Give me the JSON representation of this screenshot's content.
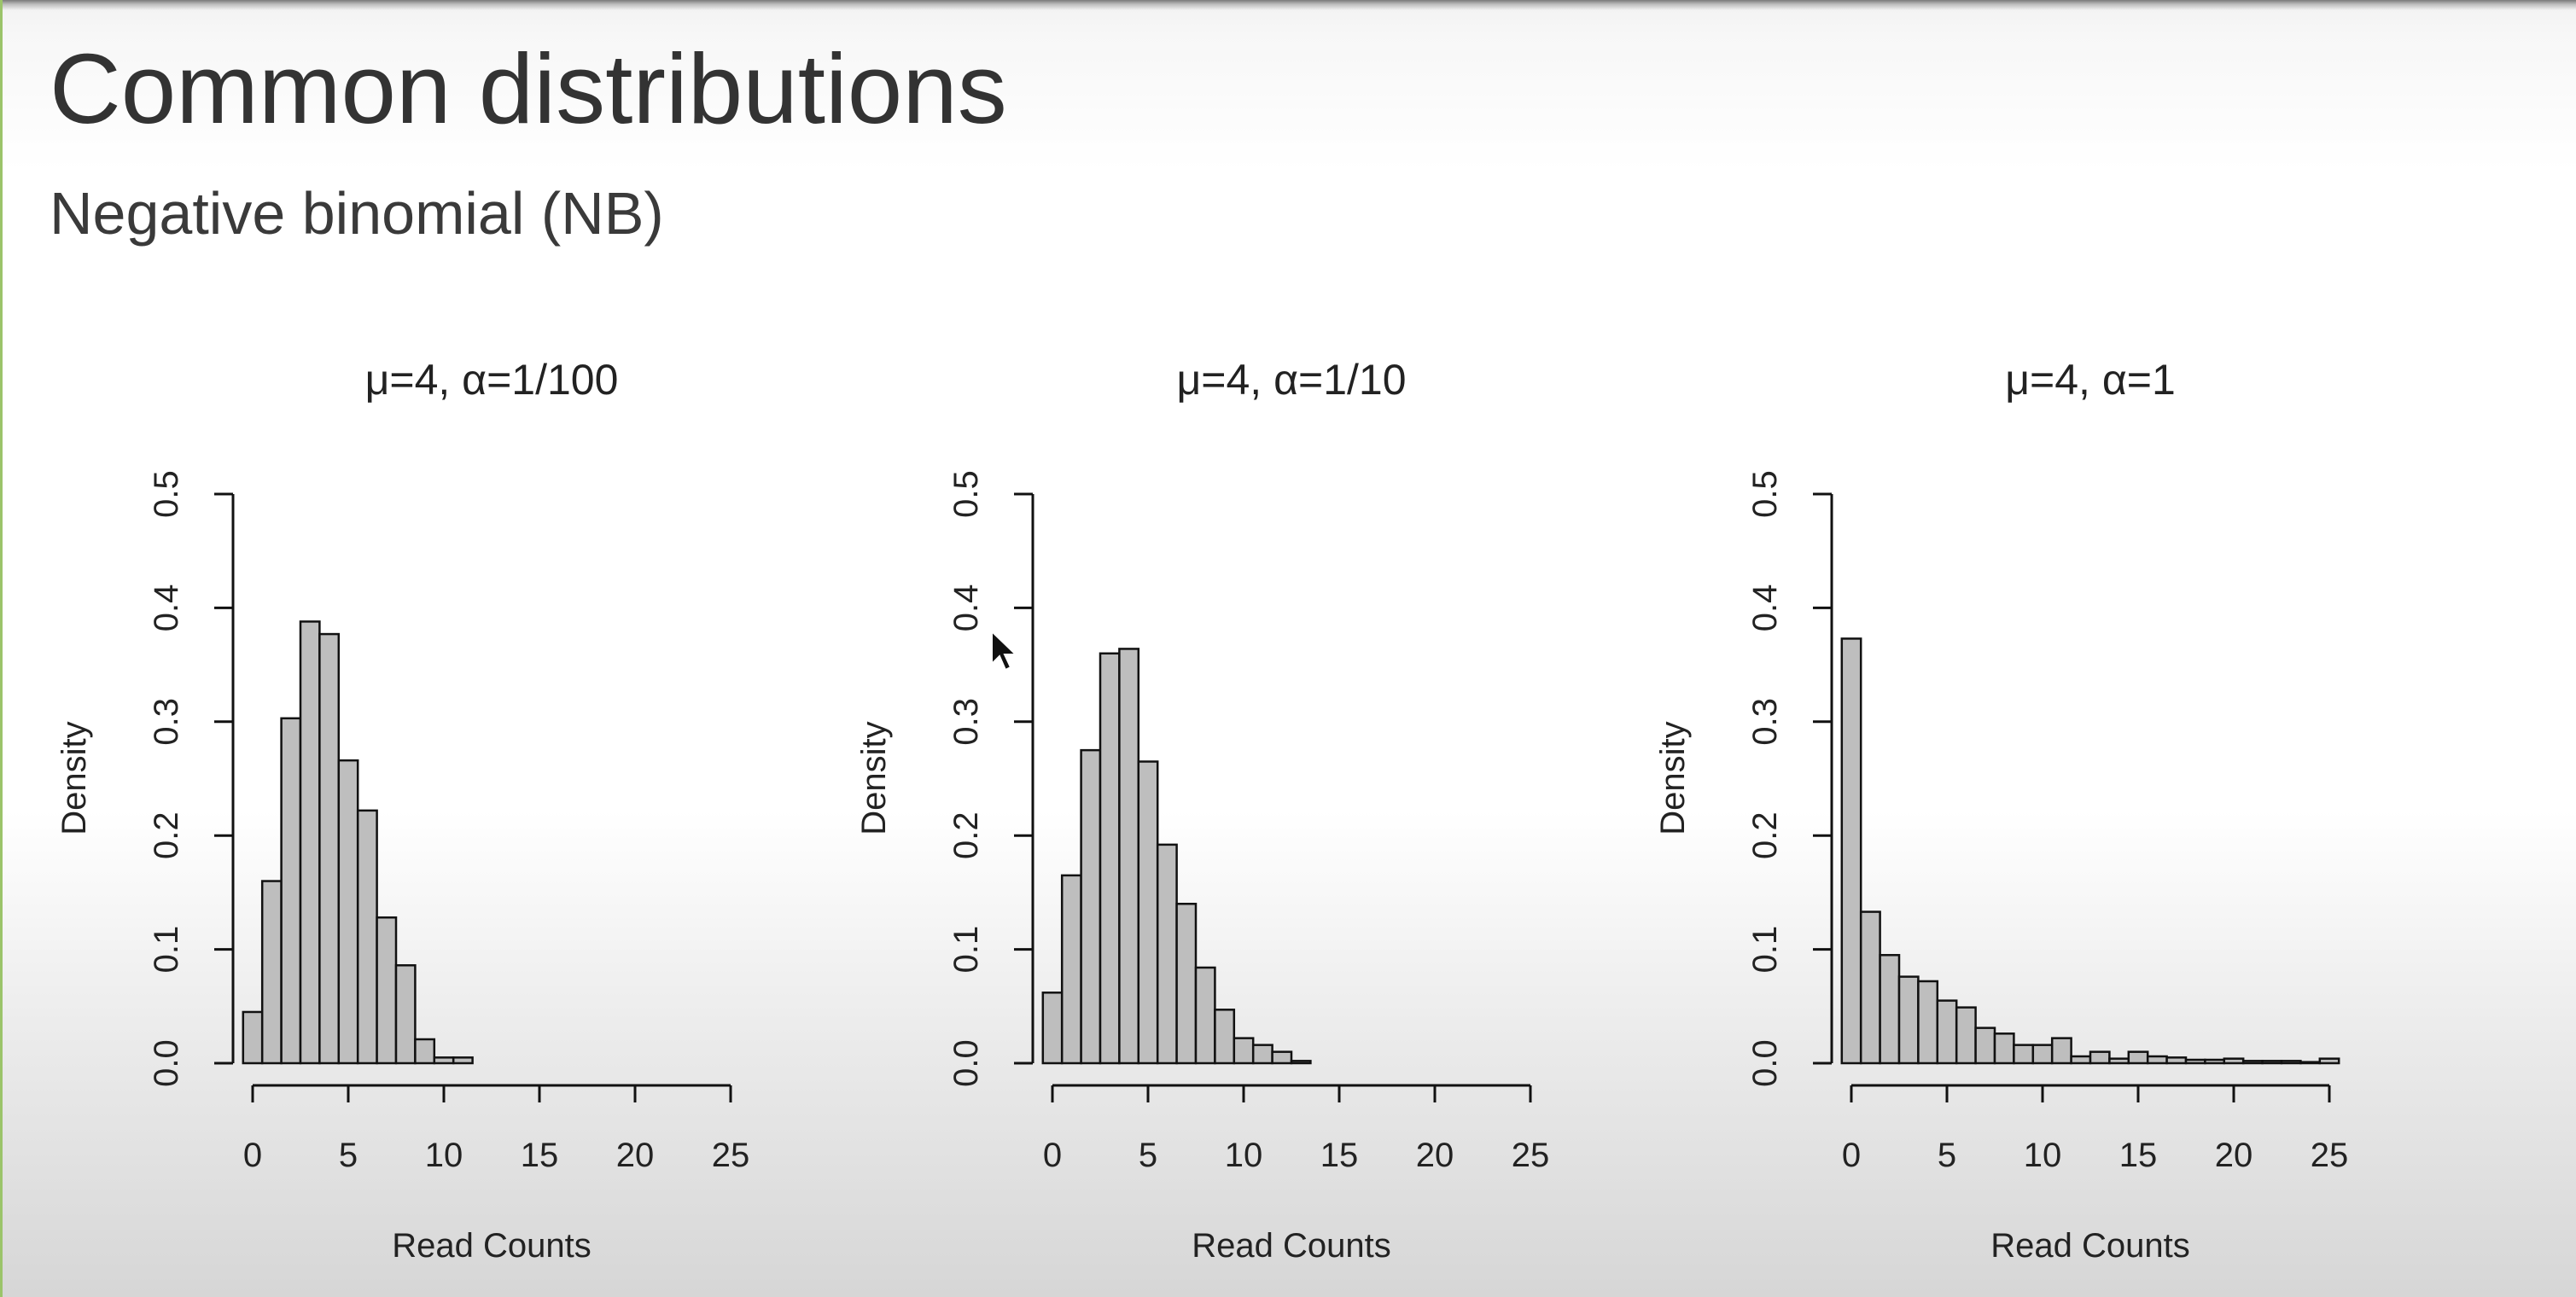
{
  "slide": {
    "title": "Common distributions",
    "subtitle": "Negative binomial (NB)"
  },
  "chart_data": [
    {
      "type": "bar",
      "title": "μ=4, α=1/100",
      "xlabel": "Read Counts",
      "ylabel": "Density",
      "x": [
        0,
        1,
        2,
        3,
        4,
        5,
        6,
        7,
        8,
        9,
        10,
        11
      ],
      "values": [
        0.045,
        0.16,
        0.303,
        0.388,
        0.377,
        0.266,
        0.222,
        0.128,
        0.086,
        0.021,
        0.005,
        0.005
      ],
      "xlim": [
        0,
        25
      ],
      "ylim": [
        0,
        0.5
      ],
      "xticks": [
        0,
        5,
        10,
        15,
        20,
        25
      ],
      "yticks": [
        "0.0",
        "0.1",
        "0.2",
        "0.3",
        "0.4",
        "0.5"
      ]
    },
    {
      "type": "bar",
      "title": "μ=4, α=1/10",
      "xlabel": "Read Counts",
      "ylabel": "Density",
      "x": [
        0,
        1,
        2,
        3,
        4,
        5,
        6,
        7,
        8,
        9,
        10,
        11,
        12,
        13
      ],
      "values": [
        0.062,
        0.165,
        0.275,
        0.36,
        0.364,
        0.265,
        0.192,
        0.14,
        0.084,
        0.047,
        0.022,
        0.016,
        0.01,
        0.002
      ],
      "xlim": [
        0,
        25
      ],
      "ylim": [
        0,
        0.5
      ],
      "xticks": [
        0,
        5,
        10,
        15,
        20,
        25
      ],
      "yticks": [
        "0.0",
        "0.1",
        "0.2",
        "0.3",
        "0.4",
        "0.5"
      ]
    },
    {
      "type": "bar",
      "title": "μ=4, α=1",
      "xlabel": "Read Counts",
      "ylabel": "Density",
      "x": [
        0,
        1,
        2,
        3,
        4,
        5,
        6,
        7,
        8,
        9,
        10,
        11,
        12,
        13,
        14,
        15,
        16,
        17,
        18,
        19,
        20,
        21,
        22,
        23,
        24,
        25
      ],
      "values": [
        0.373,
        0.133,
        0.095,
        0.076,
        0.072,
        0.055,
        0.049,
        0.031,
        0.026,
        0.016,
        0.016,
        0.022,
        0.006,
        0.01,
        0.004,
        0.01,
        0.006,
        0.005,
        0.003,
        0.003,
        0.004,
        0.002,
        0.002,
        0.002,
        0.001,
        0.004
      ],
      "xlim": [
        0,
        25
      ],
      "ylim": [
        0,
        0.5
      ],
      "xticks": [
        0,
        5,
        10,
        15,
        20,
        25
      ],
      "yticks": [
        "0.0",
        "0.1",
        "0.2",
        "0.3",
        "0.4",
        "0.5"
      ]
    }
  ]
}
